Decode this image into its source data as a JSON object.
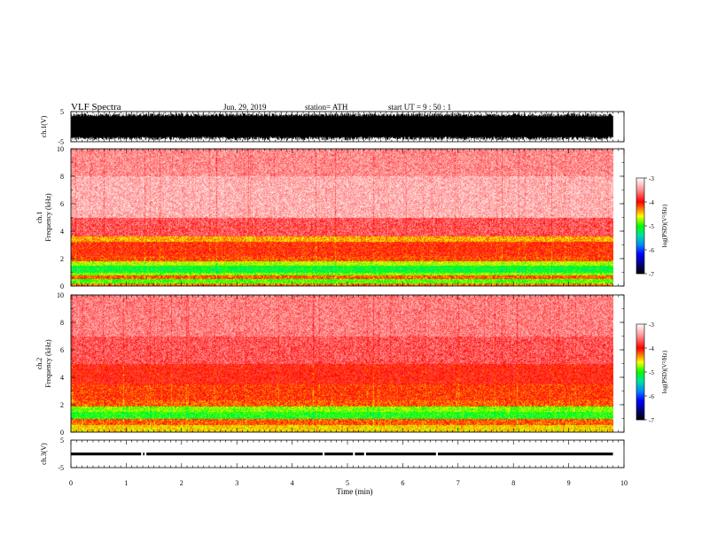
{
  "header": {
    "title": "VLF  Spectra",
    "date": "Jun. 29, 2019",
    "station": "station= ATH",
    "start": "start  UT  =    9  : 50 : 1"
  },
  "chart_data": [
    {
      "type": "line",
      "panel": "ch1-waveform",
      "ylabel": "ch.1(V)",
      "ylim": [
        -5,
        5
      ],
      "yticks": [
        "5",
        "-5"
      ],
      "xlim": [
        0,
        10
      ],
      "data_extent_min": 9.8,
      "envelope_v": [
        -4.5,
        4.5
      ]
    },
    {
      "type": "heatmap",
      "panel": "ch1-spectrogram",
      "ylabel": "ch.1\nFrequency  (kHz)",
      "ylim": [
        0,
        10
      ],
      "yticks": [
        "0",
        "2",
        "4",
        "6",
        "8",
        "10"
      ],
      "xlim": [
        0,
        10
      ],
      "data_extent_min": 9.8,
      "bands": [
        {
          "f_from": 0.0,
          "f_to": 0.2,
          "level": -4.3
        },
        {
          "f_from": 0.2,
          "f_to": 0.5,
          "level": -4.9
        },
        {
          "f_from": 0.5,
          "f_to": 0.8,
          "level": -4.2
        },
        {
          "f_from": 0.8,
          "f_to": 1.0,
          "level": -4.8
        },
        {
          "f_from": 1.0,
          "f_to": 1.5,
          "level": -5.1
        },
        {
          "f_from": 1.5,
          "f_to": 1.8,
          "level": -4.7
        },
        {
          "f_from": 1.8,
          "f_to": 2.2,
          "level": -4.15
        },
        {
          "f_from": 2.2,
          "f_to": 3.2,
          "level": -4.05
        },
        {
          "f_from": 3.2,
          "f_to": 3.6,
          "level": -4.4
        },
        {
          "f_from": 3.6,
          "f_to": 5.0,
          "level": -3.7
        },
        {
          "f_from": 5.0,
          "f_to": 8.0,
          "level": -3.35
        },
        {
          "f_from": 8.0,
          "f_to": 10.0,
          "level": -3.5
        }
      ]
    },
    {
      "type": "heatmap",
      "panel": "ch2-spectrogram",
      "ylabel": "ch.2\nFrequency  (kHz)",
      "ylim": [
        0,
        10
      ],
      "yticks": [
        "0",
        "2",
        "4",
        "6",
        "8",
        "10"
      ],
      "xlim": [
        0,
        10
      ],
      "data_extent_min": 9.8,
      "bands": [
        {
          "f_from": 0.0,
          "f_to": 0.5,
          "level": -4.5
        },
        {
          "f_from": 0.5,
          "f_to": 1.0,
          "level": -4.2
        },
        {
          "f_from": 1.0,
          "f_to": 1.5,
          "level": -5.0
        },
        {
          "f_from": 1.5,
          "f_to": 1.9,
          "level": -4.8
        },
        {
          "f_from": 1.9,
          "f_to": 2.3,
          "level": -4.2
        },
        {
          "f_from": 2.3,
          "f_to": 3.5,
          "level": -4.1
        },
        {
          "f_from": 3.5,
          "f_to": 5.0,
          "level": -3.95
        },
        {
          "f_from": 5.0,
          "f_to": 7.0,
          "level": -3.7
        },
        {
          "f_from": 7.0,
          "f_to": 10.0,
          "level": -3.55
        }
      ]
    },
    {
      "type": "line",
      "panel": "ch3-waveform",
      "ylabel": "ch.3(V)",
      "ylim": [
        -5,
        5
      ],
      "yticks": [
        "5",
        "-5"
      ],
      "xlim": [
        0,
        10
      ],
      "xticks": [
        "0",
        "1",
        "2",
        "3",
        "4",
        "5",
        "6",
        "7",
        "8",
        "9",
        "10"
      ],
      "xlabel": "Time  (min)",
      "data_extent_min": 9.8,
      "level_v": 0.0,
      "gaps_min": [
        1.27,
        1.33,
        4.55,
        5.1,
        5.3,
        6.6
      ]
    }
  ],
  "colorbar": {
    "label": "log(PSD)(V²/Hz)",
    "ticks": [
      "-3",
      "-4",
      "-5",
      "-6",
      "-7"
    ],
    "range": [
      -7,
      -3
    ],
    "stops": [
      {
        "v": -7.0,
        "color": "#000000"
      },
      {
        "v": -6.6,
        "color": "#000080"
      },
      {
        "v": -6.2,
        "color": "#0000ff"
      },
      {
        "v": -5.8,
        "color": "#0088ff"
      },
      {
        "v": -5.4,
        "color": "#00e0a0"
      },
      {
        "v": -5.0,
        "color": "#00ff00"
      },
      {
        "v": -4.6,
        "color": "#ffff00"
      },
      {
        "v": -4.3,
        "color": "#ff8000"
      },
      {
        "v": -4.0,
        "color": "#ff0000"
      },
      {
        "v": -3.5,
        "color": "#ff9090"
      },
      {
        "v": -3.0,
        "color": "#ffffff"
      }
    ]
  }
}
